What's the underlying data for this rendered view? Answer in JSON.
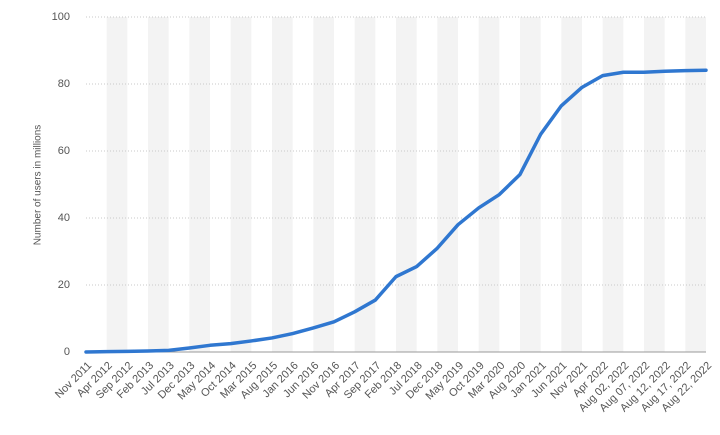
{
  "chart_data": {
    "type": "line",
    "y_label": "Number of users in millions",
    "categories": [
      "Nov 2011",
      "Apr 2012",
      "Sep 2012",
      "Feb 2013",
      "Jul 2013",
      "Dec 2013",
      "May 2014",
      "Oct 2014",
      "Mar 2015",
      "Aug 2015",
      "Jan 2016",
      "Jun 2016",
      "Nov 2016",
      "Apr 2017",
      "Sep 2017",
      "Feb 2018",
      "Jul 2018",
      "Dec 2018",
      "May 2019",
      "Oct 2019",
      "Mar 2020",
      "Aug 2020",
      "Jan 2021",
      "Jun 2021",
      "Nov 2021",
      "Apr 2022",
      "Aug 02, 2022",
      "Aug 07, 2022",
      "Aug 12, 2022",
      "Aug 17, 2022",
      "Aug 22, 2022"
    ],
    "values": [
      0,
      0.1,
      0.2,
      0.3,
      0.5,
      1.2,
      2,
      2.5,
      3.3,
      4.2,
      5.5,
      7.2,
      9,
      12,
      15.5,
      22.5,
      25.5,
      31,
      38,
      43,
      47,
      53,
      65,
      73.5,
      79,
      82.5,
      83.5,
      83.5,
      83.8,
      84,
      84.1
    ],
    "color": "#2f77d0",
    "ylim": [
      0,
      100
    ],
    "yticks": [
      0,
      20,
      40,
      60,
      80,
      100
    ],
    "grid": true
  }
}
